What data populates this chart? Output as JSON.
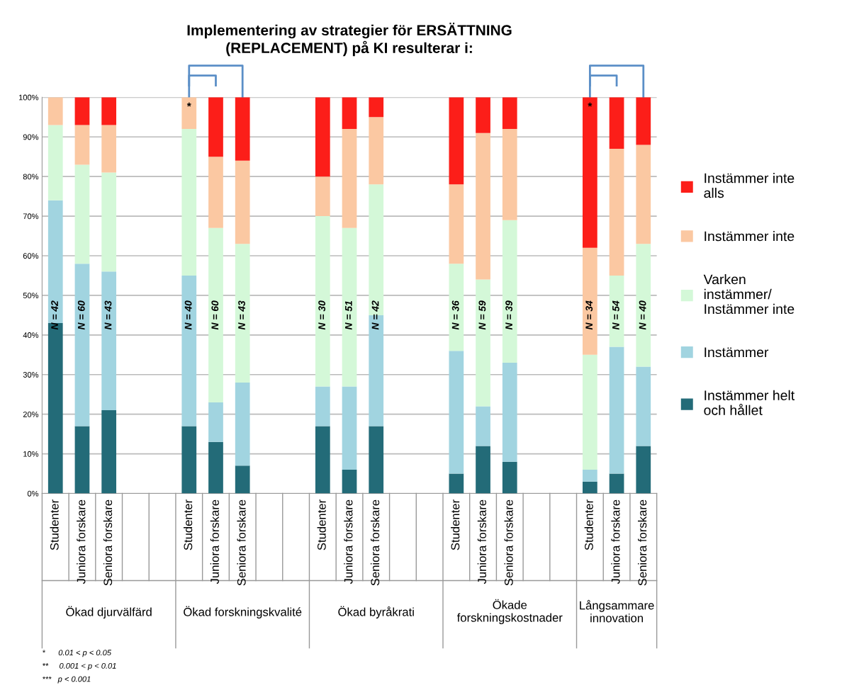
{
  "chart_data": {
    "type": "bar",
    "stacked": true,
    "title": "Implementering av strategier för ERSÄTTNING\n(REPLACEMENT) på KI resulterar i:",
    "categories": [
      "Studenter",
      "Juniora forskare",
      "Seniora forskare",
      null,
      null,
      "Studenter",
      "Juniora forskare",
      "Seniora forskare",
      null,
      null,
      "Studenter",
      "Juniora forskare",
      "Seniora forskare",
      null,
      null,
      "Studenter",
      "Juniora forskare",
      "Seniora forskare",
      null,
      null,
      "Studenter",
      "Juniora forskare",
      "Seniora forskare"
    ],
    "series": [
      {
        "name": "Instämmer helt\noch hållet",
        "color": "#236b78",
        "values": [
          43,
          17,
          21,
          null,
          null,
          17,
          13,
          7,
          null,
          null,
          17,
          6,
          17,
          null,
          null,
          5,
          12,
          8,
          null,
          null,
          3,
          5,
          12
        ]
      },
      {
        "name": "Instämmer",
        "color": "#a1d4e0",
        "values": [
          31,
          41,
          35,
          null,
          null,
          38,
          10,
          21,
          null,
          null,
          10,
          21,
          28,
          null,
          null,
          31,
          10,
          25,
          null,
          null,
          3,
          32,
          20
        ]
      },
      {
        "name": "Varken\ninstämmer/\nInstämmer inte",
        "color": "#d4f8d8",
        "values": [
          19,
          25,
          25,
          null,
          null,
          37,
          44,
          35,
          null,
          null,
          43,
          40,
          33,
          null,
          null,
          22,
          32,
          36,
          null,
          null,
          29,
          18,
          31
        ]
      },
      {
        "name": "Instämmer inte",
        "color": "#fbc8a2",
        "values": [
          7,
          10,
          12,
          null,
          null,
          8,
          18,
          21,
          null,
          null,
          10,
          25,
          17,
          null,
          null,
          20,
          37,
          23,
          null,
          null,
          27,
          32,
          25
        ]
      },
      {
        "name": "Instämmer inte\nalls",
        "color": "#fc1e19",
        "values": [
          0,
          7,
          7,
          null,
          null,
          0,
          15,
          16,
          null,
          null,
          20,
          8,
          5,
          null,
          null,
          22,
          9,
          8,
          null,
          null,
          38,
          13,
          12
        ]
      }
    ],
    "ylim": [
      0,
      100
    ],
    "yticks": [
      {
        "value": 0,
        "label": "0%"
      },
      {
        "value": 10,
        "label": "10%"
      },
      {
        "value": 20,
        "label": "20%"
      },
      {
        "value": 30,
        "label": "30%"
      },
      {
        "value": 40,
        "label": "40%"
      },
      {
        "value": 50,
        "label": "50%"
      },
      {
        "value": 60,
        "label": "60%"
      },
      {
        "value": 70,
        "label": "70%"
      },
      {
        "value": 80,
        "label": "80%"
      },
      {
        "value": 90,
        "label": "90%"
      },
      {
        "value": 100,
        "label": "100%"
      }
    ],
    "grid": "y",
    "legend": "right",
    "annotations": [
      "Ökad djurvälfärd",
      "Ökad forskningskvalité",
      "Ökad byråkrati",
      "Ökade\nforskningskostnader",
      "Långsammare\ninnovation",
      "N = 42",
      "N = 60",
      "N = 43",
      "N = 40",
      "N = 60",
      "N = 43",
      "N = 30",
      "N = 51",
      "N = 42",
      "N = 36",
      "N = 59",
      "N = 39",
      "N = 34",
      "N = 54",
      "N = 40",
      "*",
      "*",
      "*      0.01 < p < 0.05",
      "**     0.001 < p < 0.01",
      "***   p < 0.001"
    ]
  }
}
